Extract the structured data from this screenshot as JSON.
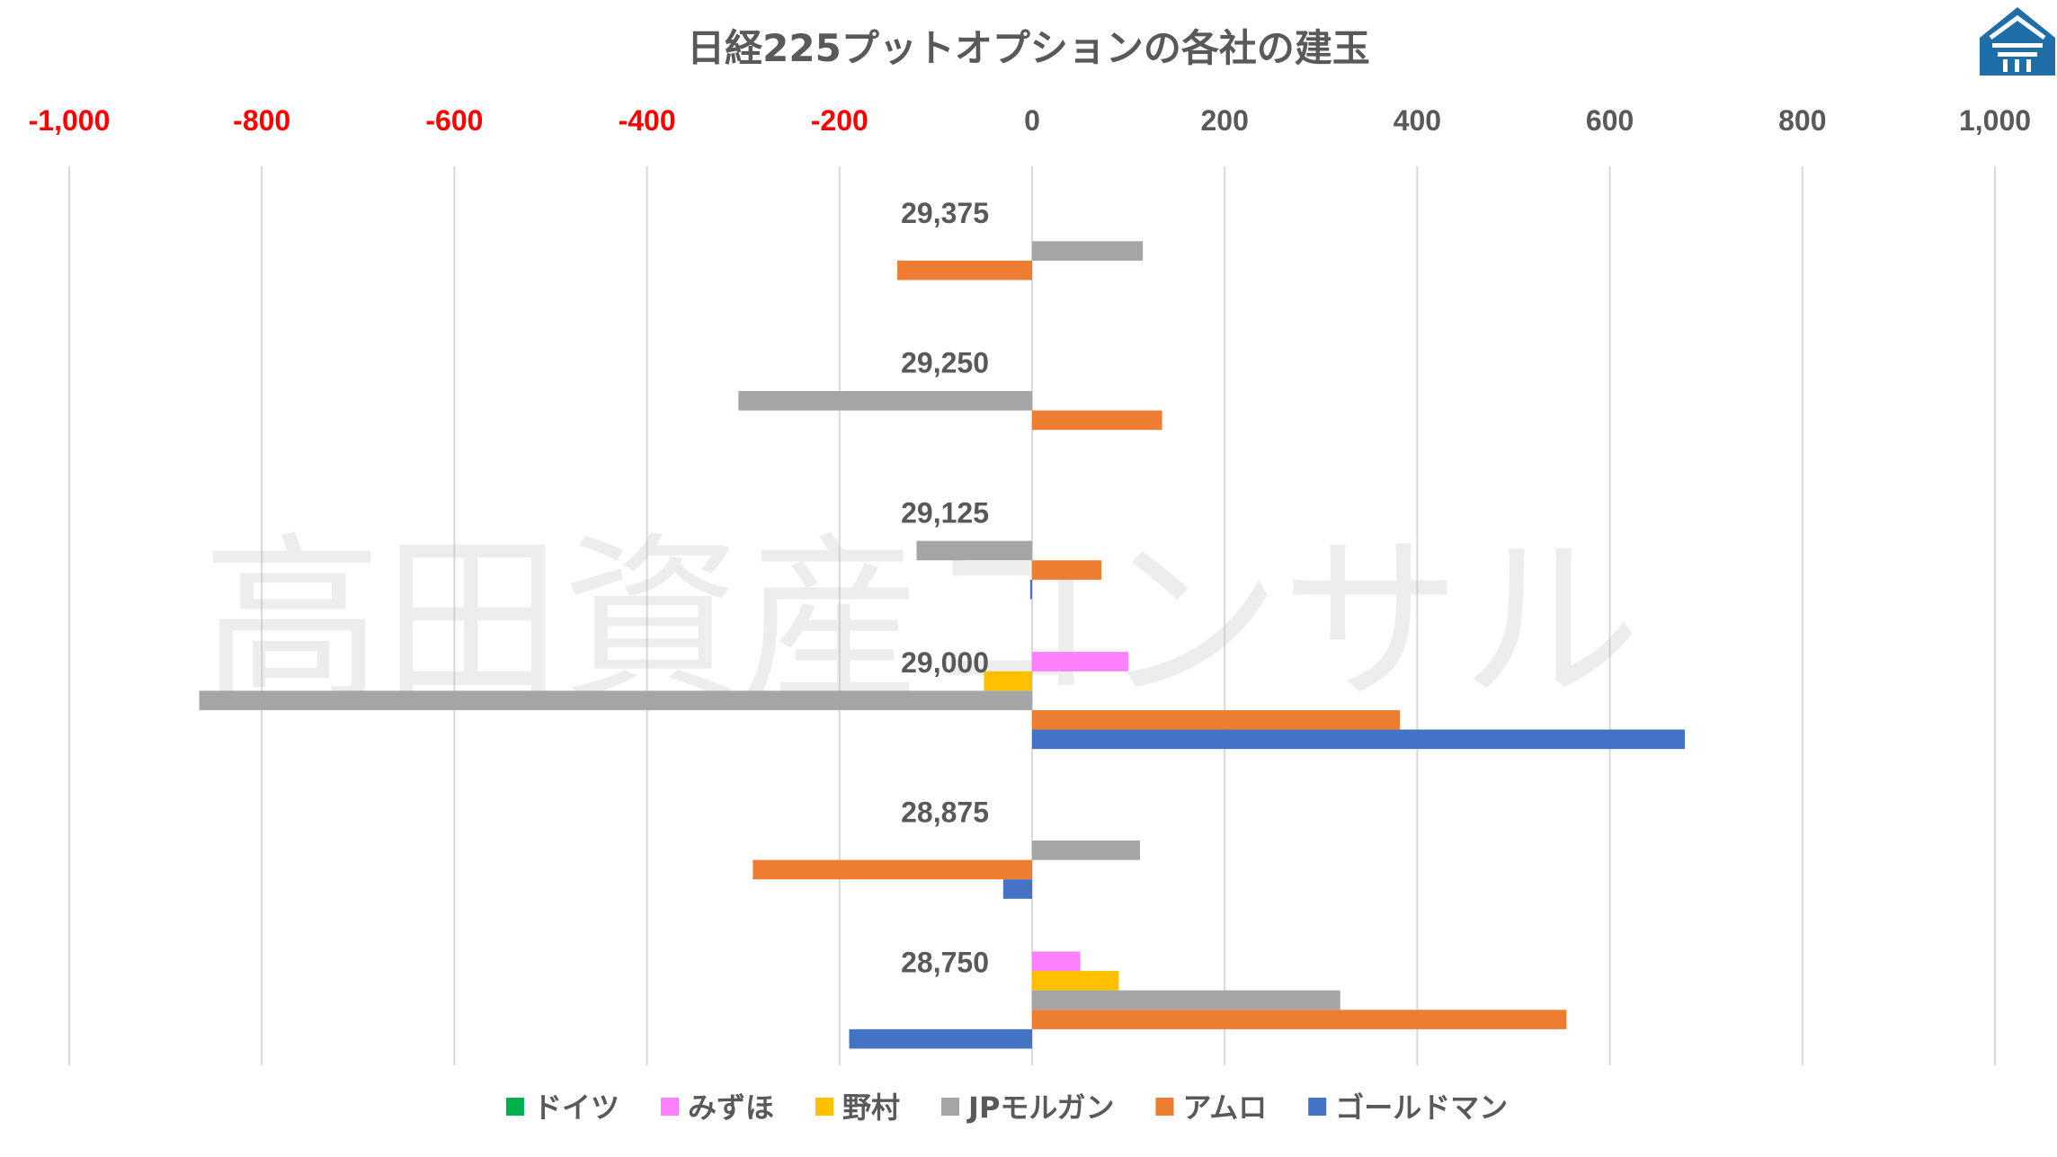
{
  "watermark": "高田資産コンサル",
  "chart_data": {
    "type": "bar",
    "orientation": "horizontal",
    "title": "日経225プットオプションの各社の建玉",
    "x_tick_labels": [
      "-1,000",
      "-800",
      "-600",
      "-400",
      "-200",
      "0",
      "200",
      "400",
      "600",
      "800",
      "1,000"
    ],
    "x_ticks": [
      -1000,
      -800,
      -600,
      -400,
      -200,
      0,
      200,
      400,
      600,
      800,
      1000
    ],
    "xlim": [
      -1000,
      1000
    ],
    "negative_tick_color": "#ff0000",
    "positive_tick_color": "#595959",
    "grid": true,
    "legend_position": "bottom",
    "categories": [
      "29,375",
      "29,250",
      "29,125",
      "29,000",
      "28,875",
      "28,750"
    ],
    "series": [
      {
        "name": "ドイツ",
        "color": "#00b050",
        "values": [
          0,
          0,
          0,
          0,
          0,
          0
        ]
      },
      {
        "name": "みずほ",
        "color": "#ff80ff",
        "values": [
          0,
          0,
          0,
          100,
          0,
          50
        ]
      },
      {
        "name": "野村",
        "color": "#ffc000",
        "values": [
          0,
          0,
          0,
          -50,
          0,
          90
        ]
      },
      {
        "name": "JPモルガン",
        "color": "#a5a5a5",
        "values": [
          115,
          -305,
          -120,
          -865,
          112,
          320
        ]
      },
      {
        "name": "アムロ",
        "color": "#ed7d31",
        "values": [
          -140,
          135,
          72,
          382,
          -290,
          555
        ]
      },
      {
        "name": "ゴールドマン",
        "color": "#4472c4",
        "values": [
          0,
          0,
          -2,
          678,
          -30,
          -190
        ]
      }
    ]
  },
  "logo": {
    "color": "#1f6ea8",
    "icon": "house-logo-icon"
  }
}
